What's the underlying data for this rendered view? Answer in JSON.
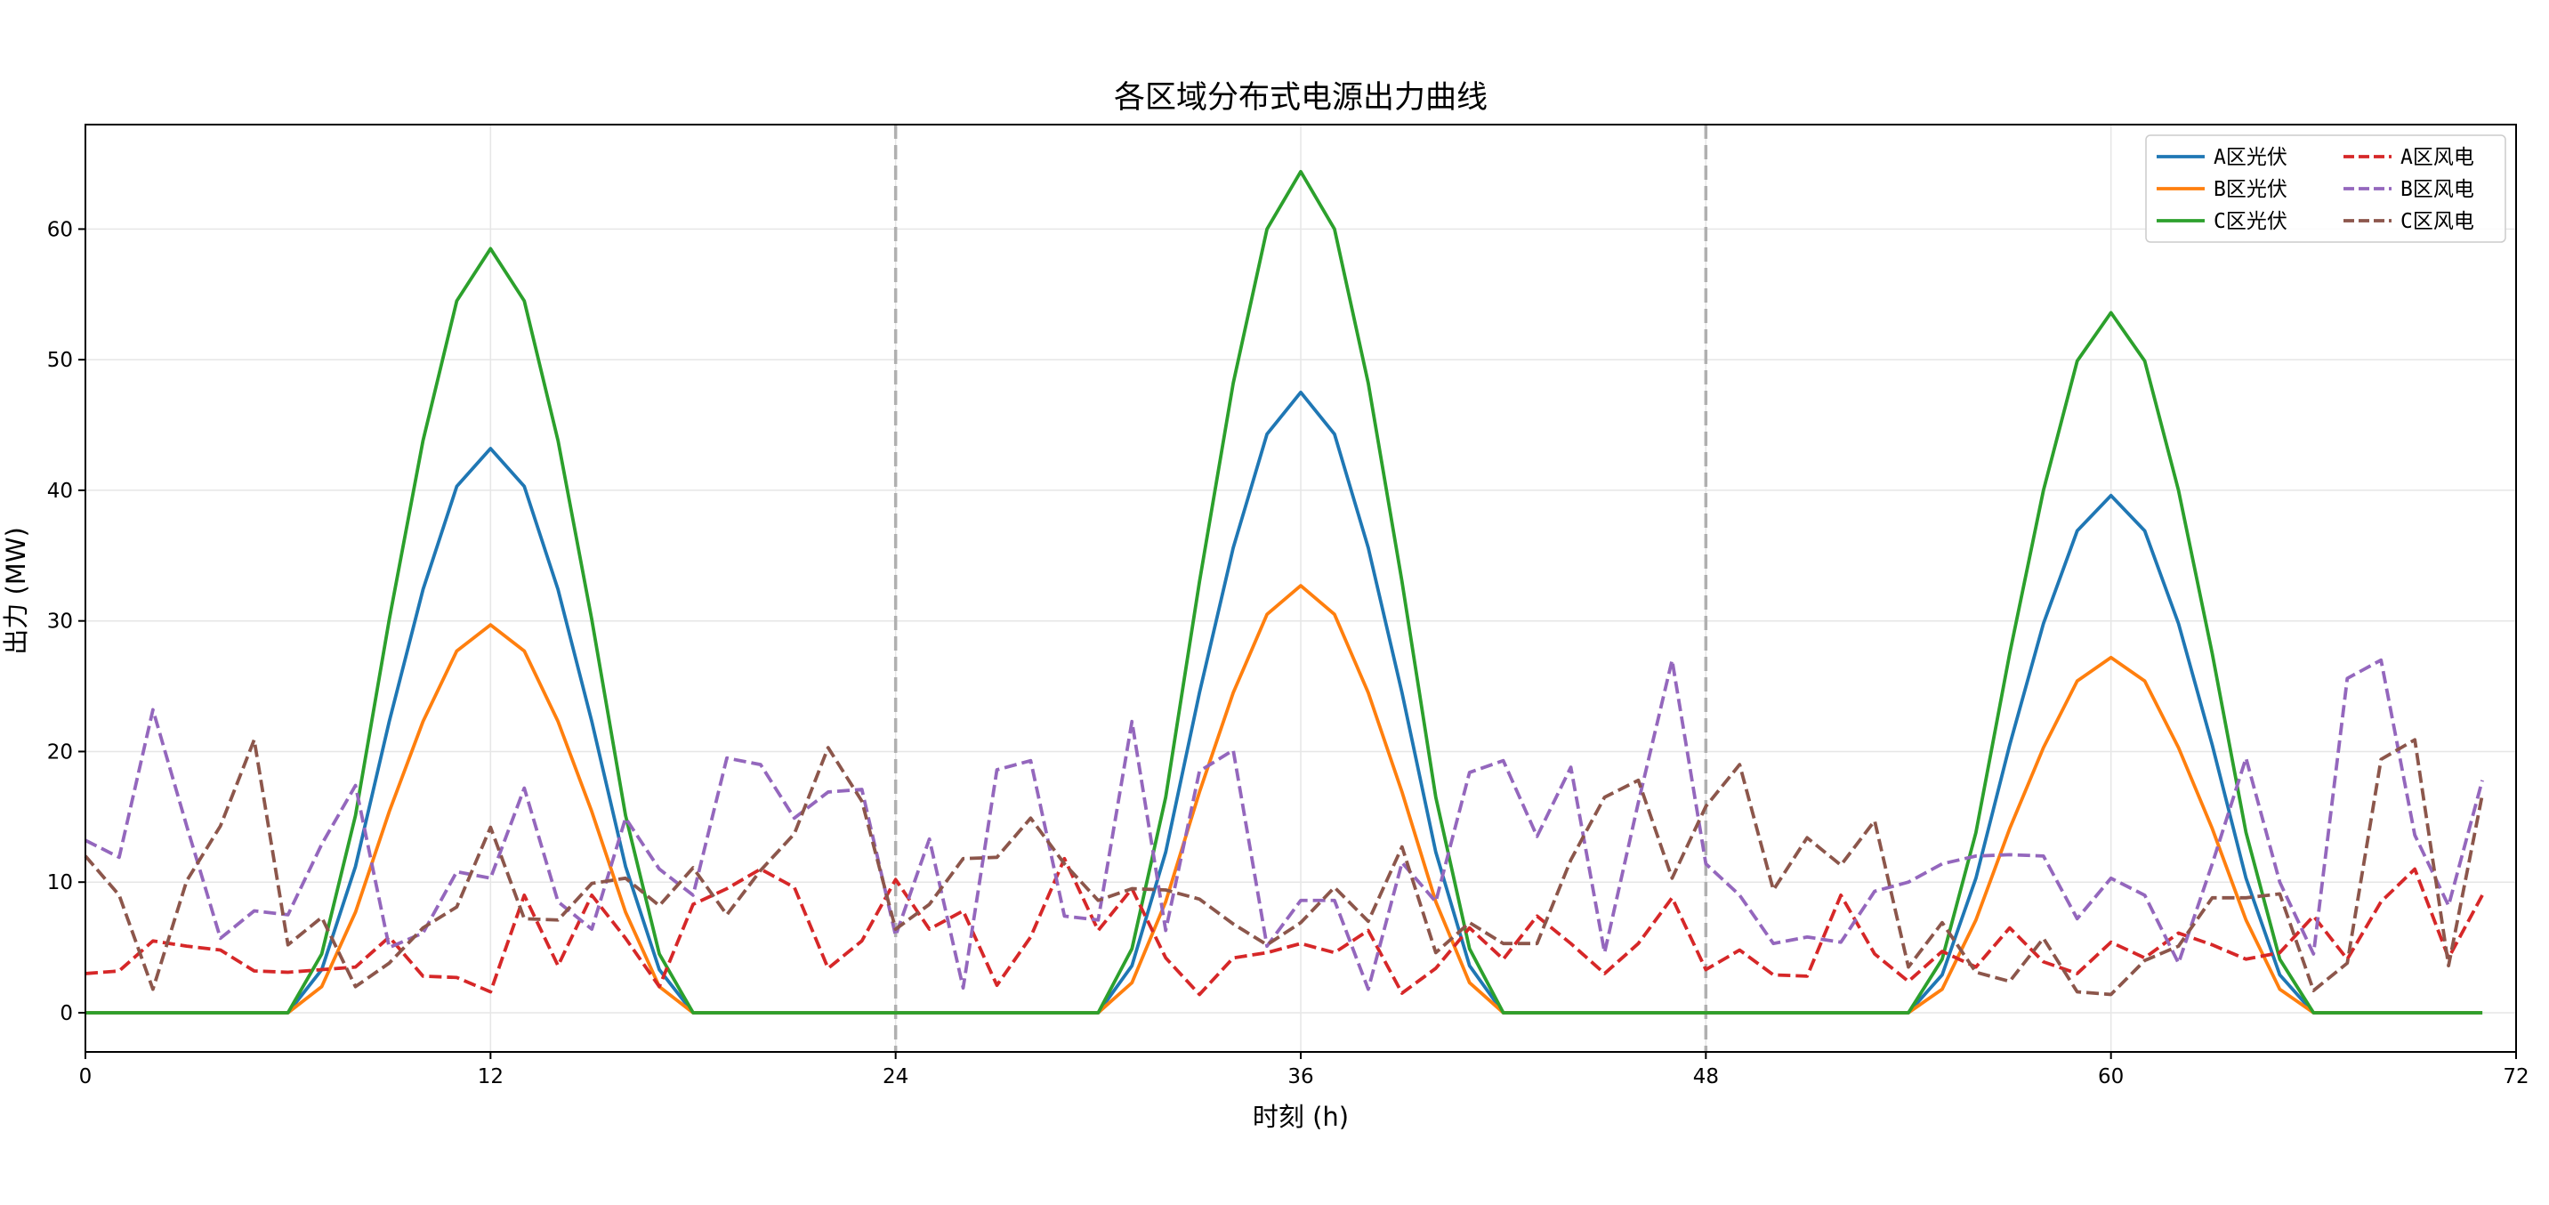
{
  "chart_data": {
    "type": "line",
    "title": "各区域分布式电源出力曲线",
    "xlabel": "时刻 (h)",
    "ylabel": "出力 (MW)",
    "xlim": [
      0,
      72
    ],
    "ylim": [
      -3,
      68
    ],
    "xticks": [
      0,
      12,
      24,
      36,
      48,
      60,
      72
    ],
    "yticks": [
      0,
      10,
      20,
      30,
      40,
      50,
      60
    ],
    "vlines": [
      24,
      48
    ],
    "grid": true,
    "legend_position": "top-right",
    "x": [
      0,
      1,
      2,
      3,
      4,
      5,
      6,
      7,
      8,
      9,
      10,
      11,
      12,
      13,
      14,
      15,
      16,
      17,
      18,
      19,
      20,
      21,
      22,
      23,
      24,
      25,
      26,
      27,
      28,
      29,
      30,
      31,
      32,
      33,
      34,
      35,
      36,
      37,
      38,
      39,
      40,
      41,
      42,
      43,
      44,
      45,
      46,
      47,
      48,
      49,
      50,
      51,
      52,
      53,
      54,
      55,
      56,
      57,
      58,
      59,
      60,
      61,
      62,
      63,
      64,
      65,
      66,
      67,
      68,
      69,
      70,
      71
    ],
    "series": [
      {
        "name": "A区光伏",
        "color": "#1f77b4",
        "dash": "solid",
        "values": [
          0,
          0,
          0,
          0,
          0,
          0,
          0,
          3.3,
          11.2,
          22.3,
          32.4,
          40.3,
          43.2,
          40.3,
          32.4,
          22.3,
          11.2,
          3.3,
          0,
          0,
          0,
          0,
          0,
          0,
          0,
          0,
          0,
          0,
          0,
          0,
          0,
          3.6,
          12.3,
          24.5,
          35.6,
          44.3,
          47.5,
          44.3,
          35.6,
          24.5,
          12.3,
          3.6,
          0,
          0,
          0,
          0,
          0,
          0,
          0,
          0,
          0,
          0,
          0,
          0,
          0,
          2.9,
          10.3,
          20.5,
          29.8,
          36.9,
          39.6,
          36.9,
          29.8,
          20.5,
          10.3,
          2.9,
          0,
          0,
          0,
          0,
          0,
          0
        ]
      },
      {
        "name": "B区光伏",
        "color": "#ff7f0e",
        "dash": "solid",
        "values": [
          0,
          0,
          0,
          0,
          0,
          0,
          0,
          2.0,
          7.7,
          15.4,
          22.3,
          27.7,
          29.7,
          27.7,
          22.3,
          15.4,
          7.7,
          2.0,
          0,
          0,
          0,
          0,
          0,
          0,
          0,
          0,
          0,
          0,
          0,
          0,
          0,
          2.3,
          8.5,
          16.9,
          24.5,
          30.5,
          32.7,
          30.5,
          24.5,
          16.9,
          8.5,
          2.3,
          0,
          0,
          0,
          0,
          0,
          0,
          0,
          0,
          0,
          0,
          0,
          0,
          0,
          1.8,
          7.1,
          14.1,
          20.3,
          25.4,
          27.2,
          25.4,
          20.3,
          14.1,
          7.1,
          1.8,
          0,
          0,
          0,
          0,
          0,
          0
        ]
      },
      {
        "name": "C区光伏",
        "color": "#2ca02c",
        "dash": "solid",
        "values": [
          0,
          0,
          0,
          0,
          0,
          0,
          0,
          4.5,
          15.1,
          30.1,
          43.8,
          54.5,
          58.5,
          54.5,
          43.8,
          30.1,
          15.1,
          4.5,
          0,
          0,
          0,
          0,
          0,
          0,
          0,
          0,
          0,
          0,
          0,
          0,
          0,
          4.9,
          16.5,
          33.0,
          48.2,
          60.0,
          64.4,
          60.0,
          48.2,
          33.0,
          16.5,
          4.9,
          0,
          0,
          0,
          0,
          0,
          0,
          0,
          0,
          0,
          0,
          0,
          0,
          0,
          4.1,
          13.8,
          27.5,
          40.0,
          49.9,
          53.6,
          49.9,
          40.0,
          27.5,
          13.8,
          4.1,
          0,
          0,
          0,
          0,
          0,
          0
        ]
      },
      {
        "name": "A区风电",
        "color": "#d62728",
        "dash": "dashed",
        "values": [
          3.0,
          3.2,
          5.5,
          5.1,
          4.8,
          3.2,
          3.1,
          3.3,
          3.5,
          5.8,
          2.8,
          2.7,
          1.6,
          9.0,
          3.6,
          9.0,
          5.7,
          2.0,
          8.3,
          9.5,
          11.0,
          9.6,
          3.4,
          5.5,
          10.2,
          6.4,
          7.8,
          2.1,
          5.8,
          11.8,
          6.3,
          9.5,
          4.2,
          1.4,
          4.2,
          4.6,
          5.3,
          4.6,
          6.3,
          1.5,
          3.4,
          6.5,
          4.1,
          7.4,
          5.3,
          3.0,
          5.3,
          8.8,
          3.3,
          4.8,
          2.9,
          2.8,
          9.0,
          4.5,
          2.4,
          4.7,
          3.5,
          6.5,
          3.9,
          3.0,
          5.4,
          4.2,
          6.1,
          5.2,
          4.1,
          4.6,
          7.4,
          4.1,
          8.5,
          11.0,
          4.2,
          9.0
        ]
      },
      {
        "name": "B区风电",
        "color": "#9467bd",
        "dash": "dashed",
        "values": [
          13.2,
          11.9,
          23.2,
          14.3,
          5.7,
          7.8,
          7.5,
          12.9,
          17.4,
          5.0,
          6.1,
          10.8,
          10.3,
          17.2,
          8.5,
          6.4,
          14.9,
          11.0,
          9.0,
          19.5,
          19.0,
          14.9,
          16.9,
          17.1,
          5.9,
          13.3,
          1.9,
          18.6,
          19.3,
          7.4,
          7.1,
          22.3,
          6.3,
          18.5,
          20.1,
          5.1,
          8.6,
          8.6,
          1.8,
          11.5,
          8.5,
          18.4,
          19.3,
          13.5,
          18.8,
          4.6,
          16.1,
          27.0,
          11.4,
          9.0,
          5.3,
          5.8,
          5.4,
          9.3,
          10.0,
          11.4,
          12.0,
          12.1,
          12.0,
          7.2,
          10.3,
          9.0,
          3.8,
          11.4,
          19.5,
          10.0,
          4.5,
          25.6,
          27.0,
          13.6,
          8.2,
          17.8
        ]
      },
      {
        "name": "C区风电",
        "color": "#8c564b",
        "dash": "dashed",
        "values": [
          12.0,
          9.0,
          1.8,
          10.1,
          14.3,
          20.9,
          5.2,
          7.3,
          2.0,
          3.8,
          6.5,
          8.1,
          14.2,
          7.2,
          7.1,
          9.9,
          10.3,
          8.2,
          11.1,
          7.5,
          10.9,
          13.7,
          20.3,
          16.2,
          6.4,
          8.3,
          11.8,
          11.9,
          14.9,
          11.4,
          8.6,
          9.5,
          9.4,
          8.7,
          6.8,
          5.2,
          6.9,
          9.6,
          7.0,
          12.7,
          4.6,
          6.9,
          5.3,
          5.3,
          11.7,
          16.5,
          17.8,
          10.3,
          15.8,
          19.0,
          9.4,
          13.4,
          11.3,
          14.7,
          3.5,
          6.9,
          3.1,
          2.4,
          5.7,
          1.6,
          1.4,
          4.0,
          5.1,
          8.8,
          8.8,
          9.1,
          1.7,
          3.8,
          19.4,
          20.9,
          3.6,
          16.7
        ]
      }
    ]
  }
}
